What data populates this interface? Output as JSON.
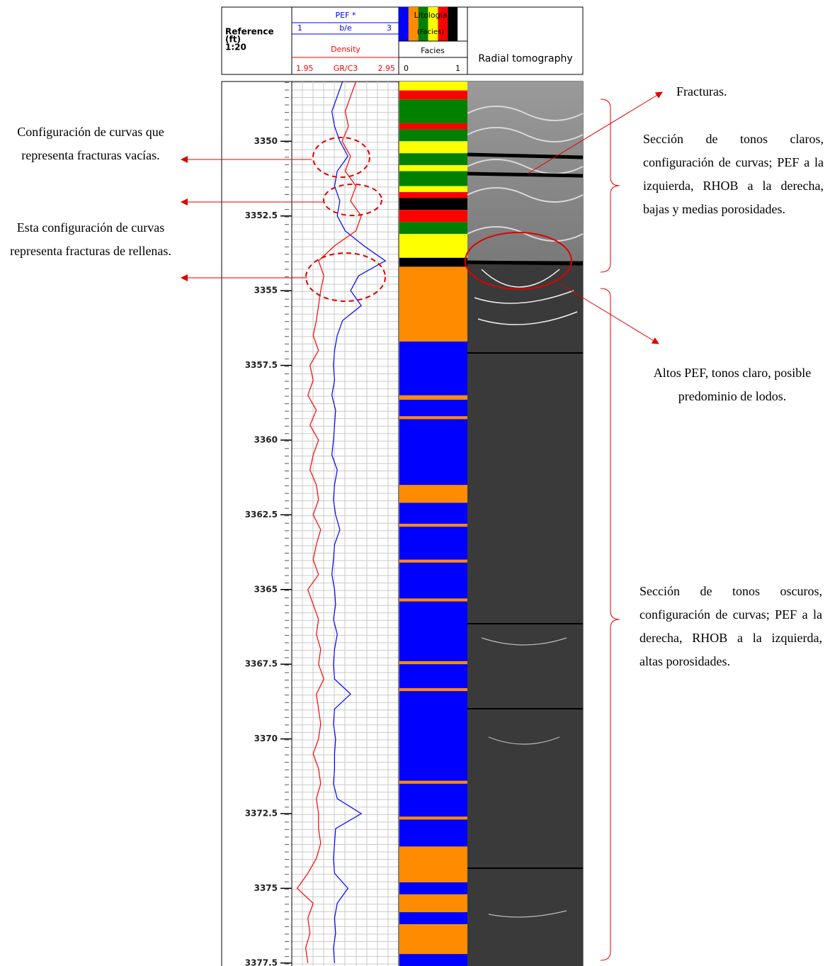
{
  "chart_data": {
    "type": "well-log",
    "depth_title": "Reference",
    "depth_unit": "(ft)",
    "depth_scale": "1:20",
    "ylim": [
      3348,
      3377.6
    ],
    "yticks": [
      3350,
      3352.5,
      3355,
      3357.5,
      3360,
      3362.5,
      3365,
      3367.5,
      3370,
      3372.5,
      3375,
      3377.5
    ],
    "depth": [
      3348,
      3348.5,
      3349,
      3349.5,
      3350,
      3350.5,
      3351,
      3351.5,
      3352,
      3352.5,
      3353,
      3353.5,
      3354,
      3354.5,
      3355,
      3355.5,
      3356,
      3356.5,
      3357,
      3357.5,
      3358,
      3358.5,
      3359,
      3359.5,
      3360,
      3360.5,
      3361,
      3361.5,
      3362,
      3362.5,
      3363,
      3363.5,
      3364,
      3364.5,
      3365,
      3365.5,
      3366,
      3366.5,
      3367,
      3367.5,
      3368,
      3368.5,
      3369,
      3369.5,
      3370,
      3370.5,
      3371,
      3371.5,
      3372,
      3372.5,
      3373,
      3373.5,
      3374,
      3374.5,
      3375,
      3375.5,
      3376,
      3376.5,
      3377,
      3377.5
    ],
    "series": [
      {
        "name": "PEF *",
        "unit": "b/e",
        "color": "#0000ff",
        "xlim": [
          1,
          3
        ],
        "values": [
          1.95,
          1.85,
          1.75,
          1.8,
          1.9,
          2.05,
          1.85,
          1.8,
          1.9,
          1.85,
          2.0,
          2.35,
          2.75,
          2.25,
          2.1,
          2.3,
          1.95,
          1.85,
          1.8,
          1.78,
          1.8,
          1.75,
          1.82,
          1.8,
          1.78,
          1.75,
          1.85,
          1.8,
          1.78,
          1.82,
          1.9,
          1.8,
          1.78,
          1.75,
          1.8,
          1.82,
          1.78,
          1.85,
          1.8,
          1.78,
          1.8,
          2.1,
          1.8,
          1.78,
          1.82,
          1.8,
          1.8,
          1.78,
          1.85,
          2.3,
          1.82,
          1.8,
          1.78,
          1.8,
          2.05,
          1.85,
          1.8,
          1.82,
          1.78,
          1.8
        ]
      },
      {
        "name": "Density",
        "unit": "GR/C3",
        "color": "#ff0000",
        "xlim": [
          1.95,
          2.95
        ],
        "values": [
          2.55,
          2.5,
          2.45,
          2.48,
          2.42,
          2.5,
          2.45,
          2.55,
          2.5,
          2.6,
          2.55,
          2.35,
          2.2,
          2.25,
          2.22,
          2.2,
          2.18,
          2.15,
          2.2,
          2.12,
          2.15,
          2.1,
          2.18,
          2.12,
          2.2,
          2.15,
          2.12,
          2.18,
          2.2,
          2.15,
          2.22,
          2.18,
          2.15,
          2.2,
          2.1,
          2.15,
          2.2,
          2.18,
          2.22,
          2.2,
          2.25,
          2.18,
          2.2,
          2.22,
          2.2,
          2.15,
          2.2,
          2.22,
          2.18,
          2.2,
          2.2,
          2.22,
          2.18,
          2.1,
          2.0,
          2.15,
          2.1,
          2.12,
          2.08,
          2.1
        ]
      }
    ],
    "facies_title": "Litología",
    "facies_subtitle": "(Facies)",
    "facies_track": "Facies",
    "facies_xlim": [
      0,
      1
    ],
    "facies_colors": [
      "#0000ff",
      "#ff8c00",
      "#008000",
      "#ffff00",
      "#ff0000",
      "#000000"
    ],
    "facies": [
      {
        "top": 3348.0,
        "base": 3348.3,
        "color": "#ffff00"
      },
      {
        "top": 3348.3,
        "base": 3348.6,
        "color": "#ff0000"
      },
      {
        "top": 3348.6,
        "base": 3349.4,
        "color": "#008000"
      },
      {
        "top": 3349.4,
        "base": 3349.6,
        "color": "#ff0000"
      },
      {
        "top": 3349.6,
        "base": 3350.0,
        "color": "#008000"
      },
      {
        "top": 3350.0,
        "base": 3350.4,
        "color": "#ffff00"
      },
      {
        "top": 3350.4,
        "base": 3350.8,
        "color": "#008000"
      },
      {
        "top": 3350.8,
        "base": 3351.0,
        "color": "#ffff00"
      },
      {
        "top": 3351.0,
        "base": 3351.5,
        "color": "#008000"
      },
      {
        "top": 3351.5,
        "base": 3351.7,
        "color": "#ffff00"
      },
      {
        "top": 3351.7,
        "base": 3351.9,
        "color": "#ff0000"
      },
      {
        "top": 3351.9,
        "base": 3352.3,
        "color": "#000000"
      },
      {
        "top": 3352.3,
        "base": 3352.7,
        "color": "#ff0000"
      },
      {
        "top": 3352.7,
        "base": 3353.1,
        "color": "#008000"
      },
      {
        "top": 3353.1,
        "base": 3353.9,
        "color": "#ffff00"
      },
      {
        "top": 3353.9,
        "base": 3354.2,
        "color": "#000000"
      },
      {
        "top": 3354.2,
        "base": 3356.7,
        "color": "#ff8c00"
      },
      {
        "top": 3356.7,
        "base": 3377.6,
        "color": "#0000ff"
      },
      {
        "top": 3358.5,
        "base": 3358.65,
        "color": "#ff8c00"
      },
      {
        "top": 3359.2,
        "base": 3359.3,
        "color": "#ff8c00"
      },
      {
        "top": 3361.5,
        "base": 3362.1,
        "color": "#ff8c00"
      },
      {
        "top": 3362.8,
        "base": 3362.9,
        "color": "#ff8c00"
      },
      {
        "top": 3364.0,
        "base": 3364.1,
        "color": "#ff8c00"
      },
      {
        "top": 3365.3,
        "base": 3365.4,
        "color": "#ff8c00"
      },
      {
        "top": 3367.4,
        "base": 3367.5,
        "color": "#ff8c00"
      },
      {
        "top": 3368.3,
        "base": 3368.4,
        "color": "#ff8c00"
      },
      {
        "top": 3371.4,
        "base": 3371.5,
        "color": "#ff8c00"
      },
      {
        "top": 3372.6,
        "base": 3372.7,
        "color": "#ff8c00"
      },
      {
        "top": 3373.6,
        "base": 3374.8,
        "color": "#ff8c00"
      },
      {
        "top": 3375.2,
        "base": 3375.8,
        "color": "#ff8c00"
      },
      {
        "top": 3376.2,
        "base": 3377.2,
        "color": "#ff8c00"
      }
    ],
    "image_title": "Radial tomography",
    "annotations": [
      "Configuración de curvas que representa fracturas vacías.",
      "Esta configuración de curvas representa fracturas de rellenas.",
      "Fracturas.",
      "Sección de tonos claros, configuración de curvas; PEF a la izquierda, RHOB a la derecha, bajas y medias porosidades.",
      "Altos PEF, tonos claro, posible predominio de lodos.",
      "Sección de tonos oscuros, configuración de curvas; PEF a la derecha, RHOB a la izquierda, altas porosidades."
    ]
  }
}
